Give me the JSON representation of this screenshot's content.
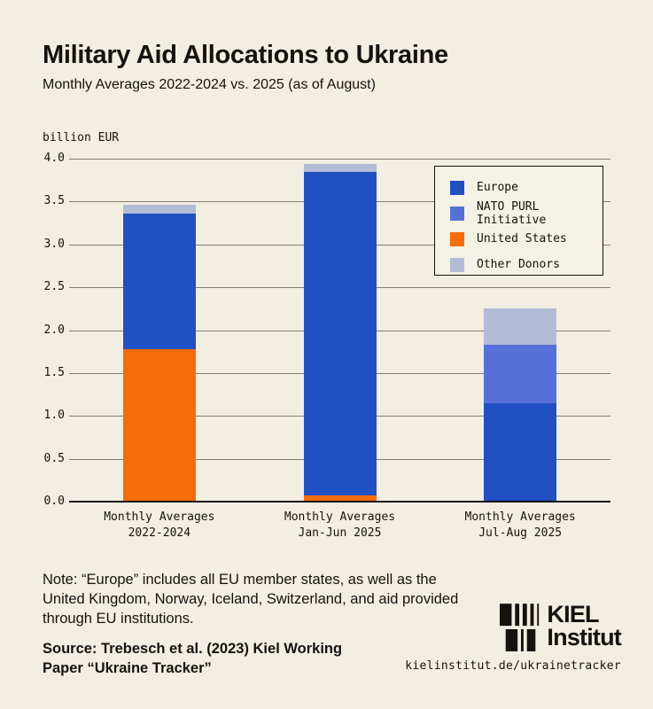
{
  "header": {
    "title": "Military Aid Allocations to Ukraine",
    "subtitle": "Monthly Averages 2022-2024 vs. 2025 (as of August)"
  },
  "chart_data": {
    "type": "bar",
    "stacked": true,
    "unit_label": "billion EUR",
    "ylabel": "billion EUR",
    "xlabel": "",
    "ylim": [
      0,
      4.0
    ],
    "yticks": [
      0.0,
      0.5,
      1.0,
      1.5,
      2.0,
      2.5,
      3.0,
      3.5,
      4.0
    ],
    "grid": true,
    "categories": [
      "Monthly Averages\n2022-2024",
      "Monthly Averages\nJan-Jun 2025",
      "Monthly Averages\nJul-Aug 2025"
    ],
    "series": [
      {
        "name": "United States",
        "color": "#f76c0a",
        "values": [
          1.78,
          0.07,
          0
        ]
      },
      {
        "name": "Europe",
        "color": "#2150c2",
        "values": [
          1.58,
          3.78,
          1.15
        ]
      },
      {
        "name": "NATO PURL Initiative",
        "color": "#5570d9",
        "values": [
          0,
          0,
          0.68
        ]
      },
      {
        "name": "Other Donors",
        "color": "#b3bcd6",
        "values": [
          0.1,
          0.09,
          0.42
        ]
      }
    ],
    "totals": [
      3.46,
      3.94,
      2.25
    ],
    "legend": {
      "position": "top-right",
      "order": [
        "Europe",
        "NATO PURL Initiative",
        "United States",
        "Other Donors"
      ]
    }
  },
  "footer": {
    "note": "Note: “Europe” includes all EU member states, as well as the United Kingdom, Norway, Iceland, Switzerland, and aid provided through EU institutions.",
    "source": "Source: Trebesch et al. (2023) Kiel Working Paper “Ukraine Tracker”",
    "url": "kielinstitut.de/ukrainetracker",
    "logo_line1": "KIEL",
    "logo_line2": "Institut"
  },
  "colors": {
    "background": "#f2eee2",
    "text": "#14130f",
    "gridline": "#847e70",
    "axis": "#14130f",
    "legend_background": "#f4f1e5"
  }
}
